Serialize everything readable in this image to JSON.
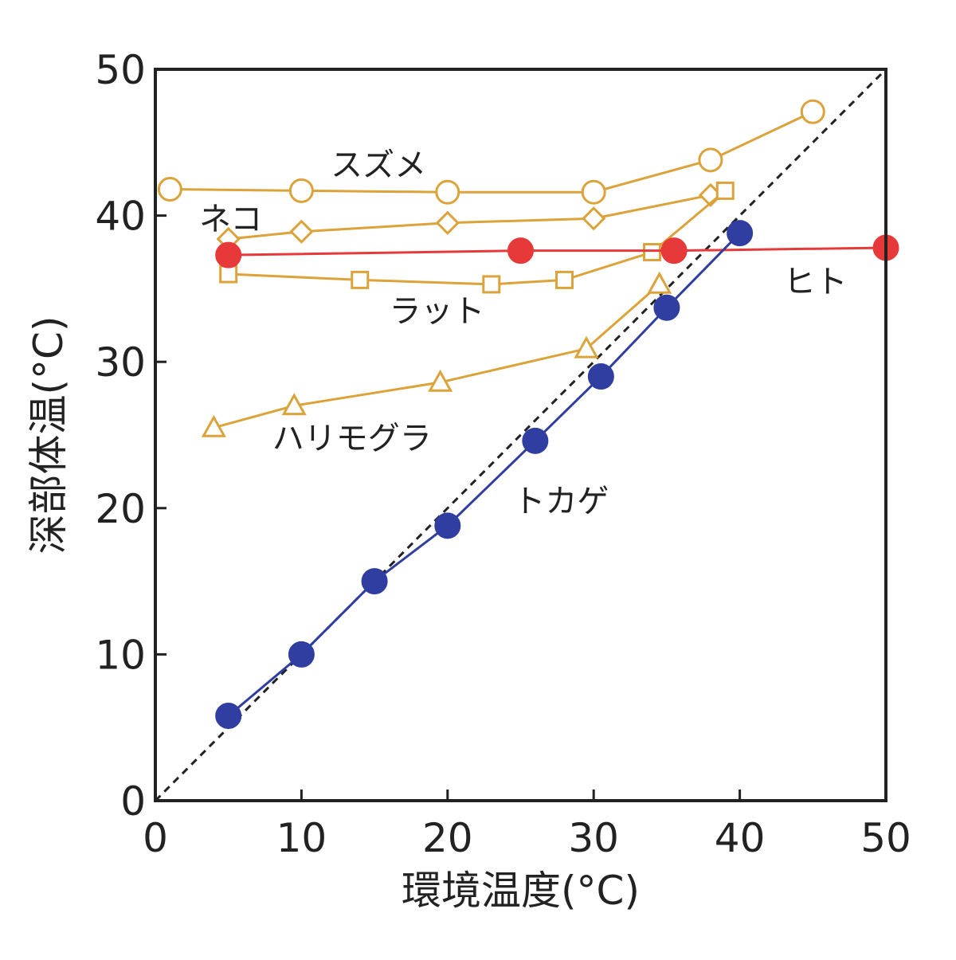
{
  "chart_data": {
    "type": "line",
    "xlabel": "環境温度(°C)",
    "ylabel": "深部体温(°C)",
    "xlim": [
      0,
      50
    ],
    "ylim": [
      0,
      50
    ],
    "xticks": [
      "0",
      "10",
      "20",
      "30",
      "40",
      "50"
    ],
    "yticks": [
      "0",
      "10",
      "20",
      "30",
      "40",
      "50"
    ],
    "grid": false,
    "legend": "none",
    "reference_line": {
      "style": "dashed",
      "color": "#222222",
      "x": [
        0,
        50
      ],
      "y": [
        0,
        50
      ]
    },
    "series": [
      {
        "name": "スズメ",
        "color": "#dba33a",
        "marker": "circle-open",
        "x": [
          1,
          10,
          20,
          30,
          38,
          45
        ],
        "y": [
          41.8,
          41.7,
          41.6,
          41.6,
          43.8,
          47.1
        ],
        "label_at": {
          "x": 12,
          "y": 43.5
        }
      },
      {
        "name": "ネコ",
        "color": "#dba33a",
        "marker": "diamond-open",
        "x": [
          5,
          10,
          20,
          30,
          38
        ],
        "y": [
          38.4,
          38.9,
          39.5,
          39.8,
          41.4
        ],
        "label_at": {
          "x": 3,
          "y": 39.8
        }
      },
      {
        "name": "ラット",
        "color": "#dba33a",
        "marker": "square-open",
        "x": [
          5,
          14,
          23,
          28,
          34,
          39
        ],
        "y": [
          36,
          35.6,
          35.3,
          35.6,
          37.5,
          41.7
        ],
        "label_at": {
          "x": 16,
          "y": 33.5
        }
      },
      {
        "name": "ハリモグラ",
        "color": "#dba33a",
        "marker": "triangle-open",
        "x": [
          4,
          9.5,
          19.5,
          29.5,
          34.5
        ],
        "y": [
          25.5,
          27,
          28.6,
          30.9,
          35.3
        ],
        "label_at": {
          "x": 8,
          "y": 24.8
        }
      },
      {
        "name": "ヒト",
        "color": "#e8393a",
        "marker": "circle-filled",
        "x": [
          5,
          25,
          35.5,
          50
        ],
        "y": [
          37.3,
          37.6,
          37.6,
          37.8
        ],
        "label_at": {
          "x": 43,
          "y": 35.5
        }
      },
      {
        "name": "トカゲ",
        "color": "#2f3ea0",
        "marker": "circle-filled",
        "x": [
          5,
          10,
          15,
          20,
          26,
          30.5,
          35,
          40
        ],
        "y": [
          5.8,
          10,
          15,
          18.8,
          24.6,
          29,
          33.7,
          38.8
        ],
        "label_at": {
          "x": 24.5,
          "y": 20.5
        }
      }
    ]
  }
}
